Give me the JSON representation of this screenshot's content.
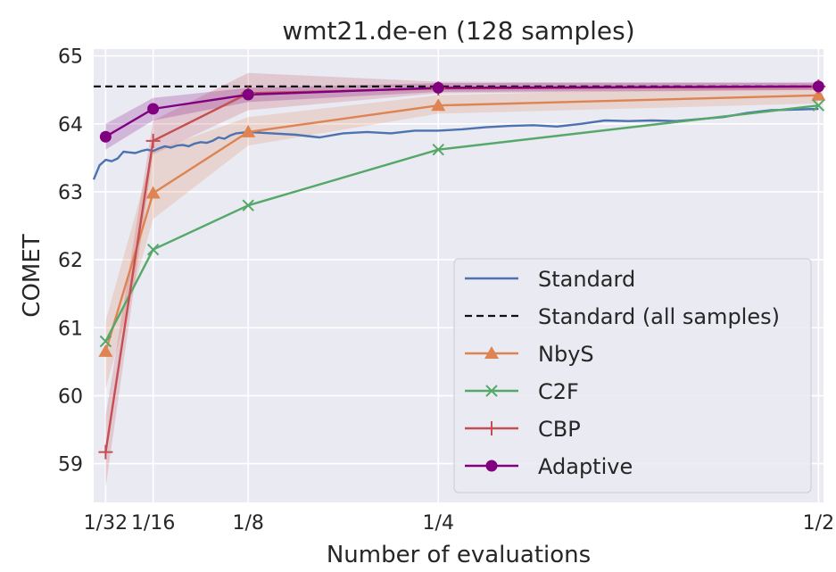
{
  "chart_data": {
    "type": "line",
    "title": "wmt21.de-en (128 samples)",
    "xlabel": "Number of evaluations",
    "ylabel": "COMET",
    "xlim": [
      0.0234,
      0.5033
    ],
    "ylim": [
      58.43,
      65.1
    ],
    "xticks": [
      {
        "value": 0.03125,
        "label": "1/32"
      },
      {
        "value": 0.0625,
        "label": "1/16"
      },
      {
        "value": 0.125,
        "label": "1/8"
      },
      {
        "value": 0.25,
        "label": "1/4"
      },
      {
        "value": 0.5,
        "label": "1/2"
      }
    ],
    "yticks": [
      59,
      60,
      61,
      62,
      63,
      64,
      65
    ],
    "grid": true,
    "legend_position": "lower-right",
    "series": [
      {
        "name": "Standard",
        "color": "#4c72b0",
        "marker": "none",
        "x": [
          0.0234,
          0.0273,
          0.0313,
          0.0352,
          0.0391,
          0.043,
          0.0469,
          0.0508,
          0.0547,
          0.0586,
          0.0625,
          0.0664,
          0.0703,
          0.0742,
          0.0781,
          0.082,
          0.0859,
          0.0898,
          0.0938,
          0.0977,
          0.1016,
          0.1055,
          0.1094,
          0.1133,
          0.1172,
          0.125,
          0.1406,
          0.1563,
          0.1719,
          0.1875,
          0.2031,
          0.2188,
          0.2344,
          0.25,
          0.2656,
          0.2813,
          0.2969,
          0.3125,
          0.3281,
          0.3438,
          0.3594,
          0.375,
          0.3906,
          0.4063,
          0.4219,
          0.4375,
          0.4531,
          0.4688,
          0.4844,
          0.5
        ],
        "y": [
          63.18,
          63.39,
          63.47,
          63.45,
          63.49,
          63.59,
          63.58,
          63.57,
          63.6,
          63.62,
          63.6,
          63.64,
          63.67,
          63.65,
          63.68,
          63.69,
          63.67,
          63.71,
          63.73,
          63.72,
          63.75,
          63.8,
          63.78,
          63.83,
          63.86,
          63.88,
          63.86,
          63.84,
          63.8,
          63.86,
          63.88,
          63.86,
          63.9,
          63.9,
          63.92,
          63.95,
          63.97,
          63.98,
          63.96,
          64.0,
          64.05,
          64.04,
          64.05,
          64.04,
          64.07,
          64.1,
          64.16,
          64.2,
          64.21,
          64.22
        ]
      },
      {
        "name": "Standard (all samples)",
        "color": "#111111",
        "dash": true,
        "marker": "none",
        "x": [
          0.0234,
          0.5033
        ],
        "y": [
          64.55,
          64.55
        ]
      },
      {
        "name": "NbyS",
        "color": "#dd8452",
        "marker": "triangle",
        "x": [
          0.03125,
          0.0625,
          0.125,
          0.25,
          0.5
        ],
        "y": [
          60.65,
          62.98,
          63.88,
          64.27,
          64.42
        ],
        "band_low": [
          60.1,
          62.6,
          63.68,
          64.15,
          64.3
        ],
        "band_high": [
          61.1,
          63.6,
          64.1,
          64.42,
          64.56
        ]
      },
      {
        "name": "C2F",
        "color": "#55a868",
        "marker": "x",
        "x": [
          0.03125,
          0.0625,
          0.125,
          0.25,
          0.5
        ],
        "y": [
          60.8,
          62.15,
          62.8,
          63.62,
          64.27
        ]
      },
      {
        "name": "CBP",
        "color": "#c44e52",
        "marker": "plus",
        "x": [
          0.03125,
          0.0625,
          0.125,
          0.25,
          0.5
        ],
        "y": [
          59.17,
          63.75,
          64.45,
          64.52,
          64.55
        ],
        "band_low": [
          58.65,
          63.55,
          64.2,
          64.45,
          64.5
        ],
        "band_high": [
          59.7,
          64.05,
          64.75,
          64.62,
          64.6
        ]
      },
      {
        "name": "Adaptive",
        "color": "#800080",
        "marker": "circle",
        "x": [
          0.03125,
          0.0625,
          0.125,
          0.25,
          0.5
        ],
        "y": [
          63.81,
          64.22,
          64.43,
          64.53,
          64.55
        ],
        "band_low": [
          63.62,
          64.05,
          64.32,
          64.47,
          64.5
        ],
        "band_high": [
          64.0,
          64.38,
          64.53,
          64.6,
          64.61
        ]
      }
    ]
  }
}
